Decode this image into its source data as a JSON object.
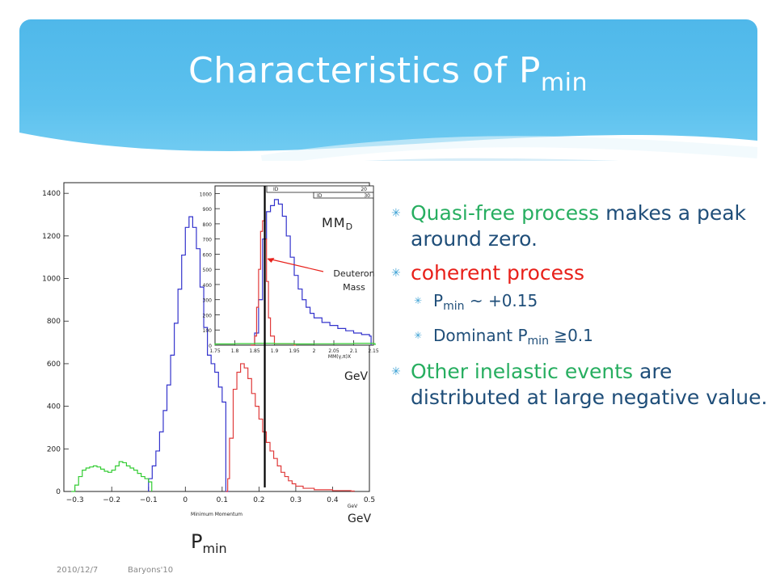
{
  "slide": {
    "title_main": "Characteristics of P",
    "title_sub": "min",
    "footer_date": "2010/12/7",
    "footer_conf": "Baryons'10",
    "accent_blue": "#4fb8ea"
  },
  "bullets": {
    "b1_a": "Quasi-free process",
    "b1_b": " makes a peak around zero.",
    "b2": "coherent process",
    "b2_s1_a": "P",
    "b2_s1_sub": "min",
    "b2_s1_b": " ~  +0.15",
    "b2_s2_a": "Dominant  P",
    "b2_s2_sub": "min",
    "b2_s2_b": " ≧0.1",
    "b3_a": "Other inelastic events",
    "b3_b": " are distributed at large negative value."
  },
  "labels": {
    "mmd_main": "MM",
    "mmd_sub": "D",
    "deuteron_line1": "Deuteron",
    "deuteron_line2": "Mass",
    "gev_inset": "GeV",
    "gev_main": "GeV",
    "pmin_main": "P",
    "pmin_sub": "min"
  },
  "chart_data": [
    {
      "type": "histogram",
      "xlabel": "Minimum Momentum",
      "xunit": "GeV",
      "xlim": [
        -0.33,
        0.5
      ],
      "ylim": [
        0,
        1450
      ],
      "xticks": [
        "-0.3",
        "-0.2",
        "-0.1",
        "0",
        "0.1",
        "0.2",
        "0.3",
        "0.4",
        "0.5"
      ],
      "yticks": [
        "0",
        "200",
        "400",
        "600",
        "800",
        "1000",
        "1200",
        "1400"
      ],
      "series": [
        {
          "color": "#3333cc",
          "points": [
            [
              -0.1,
              0
            ],
            [
              -0.1,
              60
            ],
            [
              -0.09,
              120
            ],
            [
              -0.08,
              190
            ],
            [
              -0.07,
              280
            ],
            [
              -0.06,
              380
            ],
            [
              -0.05,
              500
            ],
            [
              -0.04,
              640
            ],
            [
              -0.03,
              790
            ],
            [
              -0.02,
              950
            ],
            [
              -0.01,
              1110
            ],
            [
              0.0,
              1240
            ],
            [
              0.01,
              1290
            ],
            [
              0.02,
              1240
            ],
            [
              0.03,
              1140
            ],
            [
              0.04,
              960
            ],
            [
              0.05,
              770
            ],
            [
              0.06,
              640
            ],
            [
              0.07,
              600
            ],
            [
              0.08,
              560
            ],
            [
              0.09,
              490
            ],
            [
              0.1,
              420
            ],
            [
              0.11,
              0
            ]
          ]
        },
        {
          "color": "#e03a3a",
          "points": [
            [
              0.11,
              0
            ],
            [
              0.115,
              60
            ],
            [
              0.12,
              250
            ],
            [
              0.13,
              480
            ],
            [
              0.14,
              560
            ],
            [
              0.15,
              600
            ],
            [
              0.16,
              580
            ],
            [
              0.17,
              530
            ],
            [
              0.18,
              460
            ],
            [
              0.19,
              400
            ],
            [
              0.2,
              340
            ],
            [
              0.21,
              280
            ],
            [
              0.22,
              230
            ],
            [
              0.23,
              190
            ],
            [
              0.24,
              155
            ],
            [
              0.25,
              120
            ],
            [
              0.26,
              90
            ],
            [
              0.27,
              70
            ],
            [
              0.28,
              50
            ],
            [
              0.29,
              36
            ],
            [
              0.3,
              25
            ],
            [
              0.32,
              15
            ],
            [
              0.35,
              8
            ],
            [
              0.4,
              4
            ],
            [
              0.45,
              2
            ]
          ]
        },
        {
          "color": "#33cc33",
          "points": [
            [
              -0.31,
              0
            ],
            [
              -0.3,
              30
            ],
            [
              -0.29,
              70
            ],
            [
              -0.28,
              100
            ],
            [
              -0.27,
              110
            ],
            [
              -0.26,
              115
            ],
            [
              -0.25,
              120
            ],
            [
              -0.24,
              115
            ],
            [
              -0.23,
              105
            ],
            [
              -0.22,
              95
            ],
            [
              -0.21,
              90
            ],
            [
              -0.2,
              100
            ],
            [
              -0.19,
              120
            ],
            [
              -0.18,
              140
            ],
            [
              -0.17,
              135
            ],
            [
              -0.16,
              120
            ],
            [
              -0.15,
              110
            ],
            [
              -0.14,
              100
            ],
            [
              -0.13,
              85
            ],
            [
              -0.12,
              70
            ],
            [
              -0.11,
              60
            ],
            [
              -0.1,
              45
            ]
          ]
        }
      ]
    },
    {
      "type": "histogram",
      "xlabel": "MM(γ,π)X",
      "xlim": [
        1.75,
        2.15
      ],
      "ylim": [
        0,
        1050
      ],
      "xticks": [
        "1.75",
        "1.8",
        "1.85",
        "1.9",
        "1.95",
        "2",
        "2.05",
        "2.1",
        "2.15"
      ],
      "yticks": [
        "0",
        "100",
        "200",
        "300",
        "400",
        "500",
        "600",
        "700",
        "800",
        "900",
        "1000"
      ],
      "stat_box_1": "ID",
      "stat_box_2": "20",
      "stat_box_3": "ID",
      "stat_box_4": "30",
      "series": [
        {
          "color": "#3333cc",
          "points": [
            [
              1.84,
              0
            ],
            [
              1.85,
              80
            ],
            [
              1.86,
              300
            ],
            [
              1.87,
              700
            ],
            [
              1.88,
              880
            ],
            [
              1.89,
              920
            ],
            [
              1.9,
              960
            ],
            [
              1.91,
              930
            ],
            [
              1.92,
              850
            ],
            [
              1.93,
              720
            ],
            [
              1.94,
              580
            ],
            [
              1.95,
              460
            ],
            [
              1.96,
              370
            ],
            [
              1.97,
              300
            ],
            [
              1.98,
              250
            ],
            [
              1.99,
              210
            ],
            [
              2.0,
              180
            ],
            [
              2.02,
              150
            ],
            [
              2.04,
              130
            ],
            [
              2.06,
              110
            ],
            [
              2.08,
              95
            ],
            [
              2.1,
              80
            ],
            [
              2.12,
              70
            ],
            [
              2.14,
              60
            ]
          ]
        },
        {
          "color": "#e03a3a",
          "points": [
            [
              1.84,
              0
            ],
            [
              1.85,
              60
            ],
            [
              1.855,
              250
            ],
            [
              1.86,
              500
            ],
            [
              1.865,
              750
            ],
            [
              1.87,
              820
            ],
            [
              1.875,
              700
            ],
            [
              1.88,
              420
            ],
            [
              1.885,
              180
            ],
            [
              1.89,
              60
            ],
            [
              1.9,
              10
            ],
            [
              1.95,
              0
            ]
          ]
        },
        {
          "color": "#33cc33",
          "points": [
            [
              1.75,
              8
            ],
            [
              1.8,
              10
            ],
            [
              1.85,
              12
            ],
            [
              1.9,
              10
            ],
            [
              1.95,
              8
            ],
            [
              2.0,
              9
            ],
            [
              2.05,
              10
            ],
            [
              2.1,
              12
            ],
            [
              2.15,
              10
            ]
          ]
        }
      ]
    }
  ]
}
